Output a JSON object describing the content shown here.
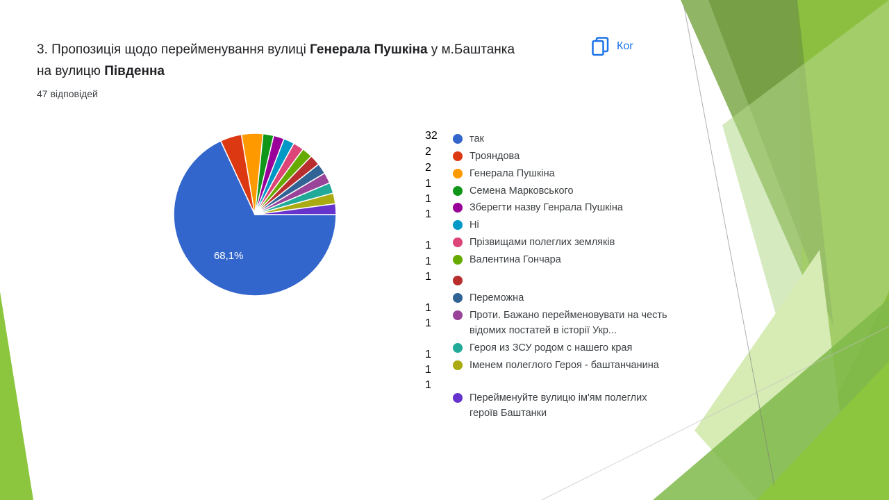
{
  "question": {
    "number_text": "3. Пропозиція щодо перейменування вулиці ",
    "bold1": "Генерала Пушкіна",
    "mid_text": " у м.Баштанка на вулицю ",
    "bold2": "Південна",
    "responses": "47 відповідей"
  },
  "copy_button": {
    "label": "Кor"
  },
  "colors": {
    "accent": "#1a73e8",
    "green_dark": "#6f9a3f",
    "green_mid": "#8cbf3f",
    "green_light": "#d7ecb5"
  },
  "chart_data": {
    "type": "pie",
    "total": 47,
    "slices": [
      {
        "label": "так",
        "count": "32",
        "value": 32,
        "color": "#3366cc"
      },
      {
        "label": "Трояндова",
        "count": "2",
        "value": 2,
        "color": "#dc3912"
      },
      {
        "label": "Генерала Пушкіна",
        "count": "2",
        "value": 2,
        "color": "#ff9900"
      },
      {
        "label": "Семена Марковського",
        "count": "1",
        "value": 1,
        "color": "#109618"
      },
      {
        "label": "Зберегти назву Генрала Пушкіна",
        "count": "1",
        "value": 1,
        "color": "#990099"
      },
      {
        "label": "Ні",
        "count": "1",
        "value": 1,
        "color": "#0099c6"
      },
      {
        "label": "Прізвищами полеглих земляків",
        "count": "1",
        "value": 1,
        "color": "#dd4477"
      },
      {
        "label": "Валентина Гончара",
        "count": "1",
        "value": 1,
        "color": "#66aa00"
      },
      {
        "label": "",
        "count": "1",
        "value": 1,
        "color": "#b82e2e"
      },
      {
        "label": "Переможна",
        "count": "1",
        "value": 1,
        "color": "#316395"
      },
      {
        "label": "Проти. Бажано перейменовувати на честь відомих постатей в історії Укр...",
        "count": "1",
        "value": 1,
        "color": "#994499"
      },
      {
        "label": "Героя из ЗСУ родом с нашего края",
        "count": "1",
        "value": 1,
        "color": "#22aa99"
      },
      {
        "label": "Іменем полеглого Героя - баштанчанина",
        "count": "1",
        "value": 1,
        "color": "#aaaa11"
      },
      {
        "label": "Перейменуйте вулицю ім'ям полеглих героїв Баштанки",
        "count": "1",
        "value": 1,
        "color": "#6633cc"
      }
    ],
    "data_labels": [
      "68,1%"
    ]
  }
}
